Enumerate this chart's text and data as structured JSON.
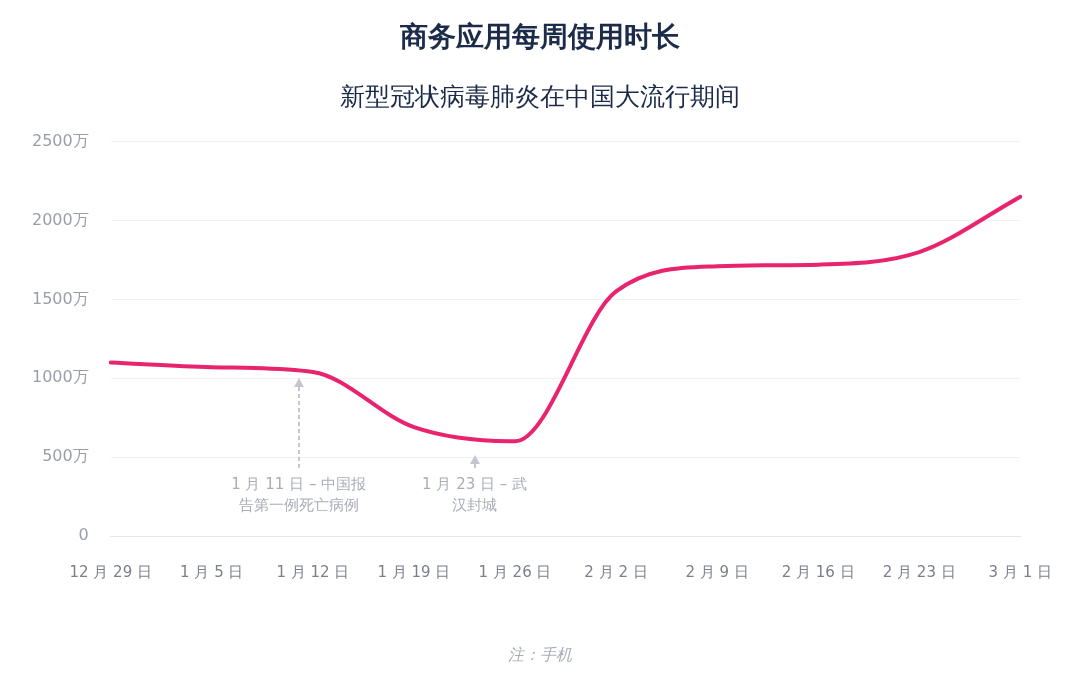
{
  "chart_data": {
    "type": "line",
    "title": "商务应用每周使用时长",
    "subtitle": "新型冠状病毒肺炎在中国大流行期间",
    "categories": [
      "12 月 29 日",
      "1 月 5 日",
      "1 月 12 日",
      "1 月 19 日",
      "1 月 26 日",
      "2 月 2 日",
      "2 月 9 日",
      "2 月 16 日",
      "2 月 23 日",
      "3 月 1 日"
    ],
    "series": [
      {
        "color": "#e8246e",
        "values": [
          1100,
          1070,
          1040,
          690,
          600,
          1550,
          1710,
          1720,
          1800,
          2150
        ]
      }
    ],
    "ylim": [
      0,
      2500
    ],
    "yticks": [
      0,
      {
        "value": 500,
        "label": "500万"
      },
      {
        "value": 1000,
        "label": "1000万"
      },
      {
        "value": 1500,
        "label": "1500万"
      },
      {
        "value": 2000,
        "label": "2000万"
      },
      {
        "value": 2500,
        "label": "2500万"
      }
    ],
    "grid": "y",
    "legend": false,
    "marker": "none",
    "line_style": "solid",
    "annotations": [
      "1 月 11 日 – 中国报告第一例死亡病例",
      "1 月 23 日 – 武汉封城",
      "注：手机"
    ]
  }
}
